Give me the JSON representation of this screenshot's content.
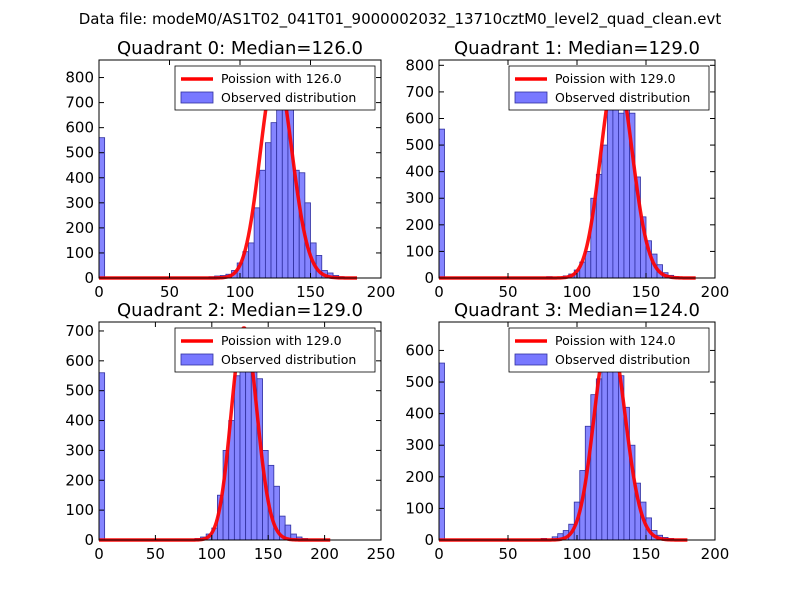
{
  "suptitle": "Data file: modeM0/AS1T02_041T01_9000002032_13710cztM0_level2_quad_clean.evt",
  "colors": {
    "bar": "#7878ff",
    "bar_edge": "#3030a0",
    "line": "#ff0000"
  },
  "chart_data": [
    {
      "type": "bar",
      "title": "Quadrant 0: Median=126.0",
      "legend": {
        "line_label": "Poission with 126.0",
        "bar_label": "Observed distribution",
        "loc": "upper right"
      },
      "xlim": [
        0,
        200
      ],
      "ylim": [
        0,
        870
      ],
      "xticks": [
        0,
        50,
        100,
        150,
        200
      ],
      "yticks": [
        0,
        100,
        200,
        300,
        400,
        500,
        600,
        700,
        800
      ],
      "bin_width": 4,
      "bins": [
        {
          "x": 0,
          "y": 560
        },
        {
          "x": 78,
          "y": 5
        },
        {
          "x": 82,
          "y": 8
        },
        {
          "x": 86,
          "y": 10
        },
        {
          "x": 90,
          "y": 15
        },
        {
          "x": 94,
          "y": 30
        },
        {
          "x": 98,
          "y": 60
        },
        {
          "x": 102,
          "y": 105
        },
        {
          "x": 106,
          "y": 140
        },
        {
          "x": 110,
          "y": 280
        },
        {
          "x": 114,
          "y": 430
        },
        {
          "x": 118,
          "y": 540
        },
        {
          "x": 122,
          "y": 620
        },
        {
          "x": 126,
          "y": 790
        },
        {
          "x": 130,
          "y": 700
        },
        {
          "x": 134,
          "y": 750
        },
        {
          "x": 138,
          "y": 430
        },
        {
          "x": 142,
          "y": 420
        },
        {
          "x": 146,
          "y": 300
        },
        {
          "x": 150,
          "y": 140
        },
        {
          "x": 154,
          "y": 90
        },
        {
          "x": 158,
          "y": 30
        },
        {
          "x": 162,
          "y": 20
        },
        {
          "x": 166,
          "y": 10
        },
        {
          "x": 170,
          "y": 5
        }
      ],
      "poisson": {
        "mean": 126.0,
        "peak": 830,
        "start": 0,
        "end": 183
      }
    },
    {
      "type": "bar",
      "title": "Quadrant 1: Median=129.0",
      "legend": {
        "line_label": "Poission with 129.0",
        "bar_label": "Observed distribution",
        "loc": "upper right"
      },
      "xlim": [
        0,
        200
      ],
      "ylim": [
        0,
        820
      ],
      "xticks": [
        0,
        50,
        100,
        150,
        200
      ],
      "yticks": [
        0,
        100,
        200,
        300,
        400,
        500,
        600,
        700,
        800
      ],
      "bin_width": 4,
      "bins": [
        {
          "x": 0,
          "y": 560
        },
        {
          "x": 78,
          "y": 5
        },
        {
          "x": 90,
          "y": 8
        },
        {
          "x": 94,
          "y": 15
        },
        {
          "x": 98,
          "y": 30
        },
        {
          "x": 102,
          "y": 60
        },
        {
          "x": 106,
          "y": 100
        },
        {
          "x": 110,
          "y": 300
        },
        {
          "x": 114,
          "y": 390
        },
        {
          "x": 118,
          "y": 500
        },
        {
          "x": 122,
          "y": 650
        },
        {
          "x": 126,
          "y": 660
        },
        {
          "x": 130,
          "y": 620
        },
        {
          "x": 134,
          "y": 690
        },
        {
          "x": 138,
          "y": 620
        },
        {
          "x": 142,
          "y": 380
        },
        {
          "x": 146,
          "y": 230
        },
        {
          "x": 150,
          "y": 140
        },
        {
          "x": 154,
          "y": 90
        },
        {
          "x": 158,
          "y": 50
        },
        {
          "x": 162,
          "y": 20
        },
        {
          "x": 166,
          "y": 10
        },
        {
          "x": 170,
          "y": 5
        }
      ],
      "poisson": {
        "mean": 129.0,
        "peak": 780,
        "start": 0,
        "end": 186
      }
    },
    {
      "type": "bar",
      "title": "Quadrant 2: Median=129.0",
      "legend": {
        "line_label": "Poission with 129.0",
        "bar_label": "Observed distribution",
        "loc": "upper right"
      },
      "xlim": [
        0,
        250
      ],
      "ylim": [
        0,
        730
      ],
      "xticks": [
        0,
        50,
        100,
        150,
        200,
        250
      ],
      "yticks": [
        0,
        100,
        200,
        300,
        400,
        500,
        600,
        700
      ],
      "bin_width": 5,
      "bins": [
        {
          "x": 0,
          "y": 560
        },
        {
          "x": 85,
          "y": 5
        },
        {
          "x": 90,
          "y": 10
        },
        {
          "x": 95,
          "y": 20
        },
        {
          "x": 100,
          "y": 40
        },
        {
          "x": 105,
          "y": 150
        },
        {
          "x": 110,
          "y": 300
        },
        {
          "x": 115,
          "y": 400
        },
        {
          "x": 120,
          "y": 550
        },
        {
          "x": 125,
          "y": 600
        },
        {
          "x": 130,
          "y": 670
        },
        {
          "x": 135,
          "y": 700
        },
        {
          "x": 140,
          "y": 540
        },
        {
          "x": 145,
          "y": 300
        },
        {
          "x": 150,
          "y": 250
        },
        {
          "x": 155,
          "y": 180
        },
        {
          "x": 160,
          "y": 80
        },
        {
          "x": 165,
          "y": 50
        },
        {
          "x": 170,
          "y": 20
        },
        {
          "x": 175,
          "y": 10
        },
        {
          "x": 180,
          "y": 5
        }
      ],
      "poisson": {
        "mean": 129.0,
        "peak": 710,
        "start": 0,
        "end": 205
      }
    },
    {
      "type": "bar",
      "title": "Quadrant 3: Median=124.0",
      "legend": {
        "line_label": "Poission with 124.0",
        "bar_label": "Observed distribution",
        "loc": "upper right"
      },
      "xlim": [
        0,
        200
      ],
      "ylim": [
        0,
        690
      ],
      "xticks": [
        0,
        50,
        100,
        150,
        200
      ],
      "yticks": [
        0,
        100,
        200,
        300,
        400,
        500,
        600
      ],
      "bin_width": 4,
      "bins": [
        {
          "x": 0,
          "y": 560
        },
        {
          "x": 74,
          "y": 5
        },
        {
          "x": 82,
          "y": 10
        },
        {
          "x": 86,
          "y": 20
        },
        {
          "x": 90,
          "y": 30
        },
        {
          "x": 94,
          "y": 50
        },
        {
          "x": 98,
          "y": 120
        },
        {
          "x": 102,
          "y": 220
        },
        {
          "x": 106,
          "y": 360
        },
        {
          "x": 110,
          "y": 460
        },
        {
          "x": 114,
          "y": 510
        },
        {
          "x": 118,
          "y": 560
        },
        {
          "x": 122,
          "y": 620
        },
        {
          "x": 126,
          "y": 590
        },
        {
          "x": 130,
          "y": 520
        },
        {
          "x": 134,
          "y": 420
        },
        {
          "x": 138,
          "y": 300
        },
        {
          "x": 142,
          "y": 180
        },
        {
          "x": 146,
          "y": 120
        },
        {
          "x": 150,
          "y": 70
        },
        {
          "x": 154,
          "y": 30
        },
        {
          "x": 158,
          "y": 15
        },
        {
          "x": 162,
          "y": 8
        },
        {
          "x": 166,
          "y": 5
        }
      ],
      "poisson": {
        "mean": 124.0,
        "peak": 655,
        "start": 0,
        "end": 180
      }
    }
  ]
}
